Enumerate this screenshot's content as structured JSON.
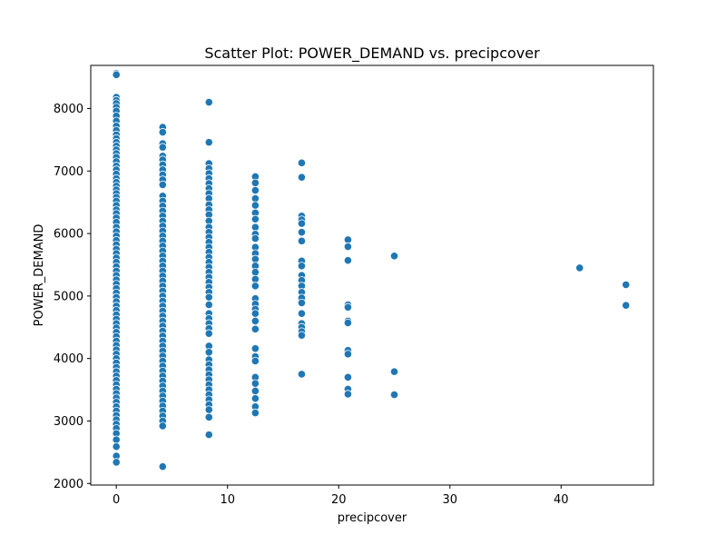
{
  "chart_data": {
    "type": "scatter",
    "title": "Scatter Plot: POWER_DEMAND vs. precipcover",
    "xlabel": "precipcover",
    "ylabel": "POWER_DEMAND",
    "xlim": [
      -2.3,
      48.3
    ],
    "ylim": [
      1975,
      8690
    ],
    "x_ticks": [
      0,
      10,
      20,
      30,
      40
    ],
    "y_ticks": [
      2000,
      3000,
      4000,
      5000,
      6000,
      7000,
      8000
    ],
    "grid": false,
    "legend": "none",
    "marker_color": "#1f77b4",
    "series": [
      {
        "points": [
          [
            0,
            8560
          ],
          [
            0,
            8540
          ],
          [
            0,
            8180
          ],
          [
            0,
            8130
          ],
          [
            0,
            8080
          ],
          [
            0,
            8020
          ],
          [
            0,
            7960
          ],
          [
            0,
            7880
          ],
          [
            0,
            7800
          ],
          [
            0,
            7720
          ],
          [
            0,
            7650
          ],
          [
            0,
            7580
          ],
          [
            0,
            7520
          ],
          [
            0,
            7460
          ],
          [
            0,
            7400
          ],
          [
            0,
            7340
          ],
          [
            0,
            7280
          ],
          [
            0,
            7220
          ],
          [
            0,
            7150
          ],
          [
            0,
            7080
          ],
          [
            0,
            7020
          ],
          [
            0,
            6950
          ],
          [
            0,
            6880
          ],
          [
            0,
            6820
          ],
          [
            0,
            6760
          ],
          [
            0,
            6700
          ],
          [
            0,
            6640
          ],
          [
            0,
            6580
          ],
          [
            0,
            6520
          ],
          [
            0,
            6450
          ],
          [
            0,
            6380
          ],
          [
            0,
            6320
          ],
          [
            0,
            6250
          ],
          [
            0,
            6180
          ],
          [
            0,
            6100
          ],
          [
            0,
            6030
          ],
          [
            0,
            5960
          ],
          [
            0,
            5890
          ],
          [
            0,
            5820
          ],
          [
            0,
            5750
          ],
          [
            0,
            5680
          ],
          [
            0,
            5610
          ],
          [
            0,
            5540
          ],
          [
            0,
            5470
          ],
          [
            0,
            5400
          ],
          [
            0,
            5330
          ],
          [
            0,
            5260
          ],
          [
            0,
            5190
          ],
          [
            0,
            5120
          ],
          [
            0,
            5050
          ],
          [
            0,
            4980
          ],
          [
            0,
            4910
          ],
          [
            0,
            4840
          ],
          [
            0,
            4770
          ],
          [
            0,
            4700
          ],
          [
            0,
            4630
          ],
          [
            0,
            4560
          ],
          [
            0,
            4490
          ],
          [
            0,
            4420
          ],
          [
            0,
            4350
          ],
          [
            0,
            4280
          ],
          [
            0,
            4210
          ],
          [
            0,
            4140
          ],
          [
            0,
            4070
          ],
          [
            0,
            4000
          ],
          [
            0,
            3930
          ],
          [
            0,
            3860
          ],
          [
            0,
            3790
          ],
          [
            0,
            3720
          ],
          [
            0,
            3650
          ],
          [
            0,
            3580
          ],
          [
            0,
            3510
          ],
          [
            0,
            3440
          ],
          [
            0,
            3370
          ],
          [
            0,
            3300
          ],
          [
            0,
            3230
          ],
          [
            0,
            3160
          ],
          [
            0,
            3090
          ],
          [
            0,
            3020
          ],
          [
            0,
            2950
          ],
          [
            0,
            2880
          ],
          [
            0,
            2800
          ],
          [
            0,
            2700
          ],
          [
            0,
            2590
          ],
          [
            0,
            2440
          ],
          [
            0,
            2340
          ],
          [
            4.17,
            7700
          ],
          [
            4.17,
            7620
          ],
          [
            4.17,
            7440
          ],
          [
            4.17,
            7380
          ],
          [
            4.17,
            7240
          ],
          [
            4.17,
            7180
          ],
          [
            4.17,
            7100
          ],
          [
            4.17,
            7020
          ],
          [
            4.17,
            6940
          ],
          [
            4.17,
            6860
          ],
          [
            4.17,
            6780
          ],
          [
            4.17,
            6600
          ],
          [
            4.17,
            6520
          ],
          [
            4.17,
            6440
          ],
          [
            4.17,
            6360
          ],
          [
            4.17,
            6280
          ],
          [
            4.17,
            6200
          ],
          [
            4.17,
            6120
          ],
          [
            4.17,
            6040
          ],
          [
            4.17,
            5960
          ],
          [
            4.17,
            5880
          ],
          [
            4.17,
            5800
          ],
          [
            4.17,
            5720
          ],
          [
            4.17,
            5640
          ],
          [
            4.17,
            5560
          ],
          [
            4.17,
            5480
          ],
          [
            4.17,
            5400
          ],
          [
            4.17,
            5320
          ],
          [
            4.17,
            5240
          ],
          [
            4.17,
            5160
          ],
          [
            4.17,
            5080
          ],
          [
            4.17,
            5000
          ],
          [
            4.17,
            4920
          ],
          [
            4.17,
            4840
          ],
          [
            4.17,
            4760
          ],
          [
            4.17,
            4680
          ],
          [
            4.17,
            4600
          ],
          [
            4.17,
            4520
          ],
          [
            4.17,
            4440
          ],
          [
            4.17,
            4360
          ],
          [
            4.17,
            4280
          ],
          [
            4.17,
            4200
          ],
          [
            4.17,
            4120
          ],
          [
            4.17,
            4040
          ],
          [
            4.17,
            3960
          ],
          [
            4.17,
            3880
          ],
          [
            4.17,
            3800
          ],
          [
            4.17,
            3720
          ],
          [
            4.17,
            3640
          ],
          [
            4.17,
            3560
          ],
          [
            4.17,
            3480
          ],
          [
            4.17,
            3400
          ],
          [
            4.17,
            3320
          ],
          [
            4.17,
            3240
          ],
          [
            4.17,
            3160
          ],
          [
            4.17,
            3080
          ],
          [
            4.17,
            3000
          ],
          [
            4.17,
            2920
          ],
          [
            4.17,
            2270
          ],
          [
            8.33,
            8100
          ],
          [
            8.33,
            7460
          ],
          [
            8.33,
            7120
          ],
          [
            8.33,
            7040
          ],
          [
            8.33,
            6960
          ],
          [
            8.33,
            6880
          ],
          [
            8.33,
            6800
          ],
          [
            8.33,
            6720
          ],
          [
            8.33,
            6640
          ],
          [
            8.33,
            6560
          ],
          [
            8.33,
            6460
          ],
          [
            8.33,
            6380
          ],
          [
            8.33,
            6300
          ],
          [
            8.33,
            6200
          ],
          [
            8.33,
            6100
          ],
          [
            8.33,
            6020
          ],
          [
            8.33,
            5940
          ],
          [
            8.33,
            5860
          ],
          [
            8.33,
            5780
          ],
          [
            8.33,
            5700
          ],
          [
            8.33,
            5620
          ],
          [
            8.33,
            5540
          ],
          [
            8.33,
            5460
          ],
          [
            8.33,
            5380
          ],
          [
            8.33,
            5300
          ],
          [
            8.33,
            5220
          ],
          [
            8.33,
            5140
          ],
          [
            8.33,
            5060
          ],
          [
            8.33,
            4980
          ],
          [
            8.33,
            4860
          ],
          [
            8.33,
            4720
          ],
          [
            8.33,
            4640
          ],
          [
            8.33,
            4560
          ],
          [
            8.33,
            4480
          ],
          [
            8.33,
            4400
          ],
          [
            8.33,
            4200
          ],
          [
            8.33,
            4100
          ],
          [
            8.33,
            3980
          ],
          [
            8.33,
            3900
          ],
          [
            8.33,
            3820
          ],
          [
            8.33,
            3740
          ],
          [
            8.33,
            3660
          ],
          [
            8.33,
            3580
          ],
          [
            8.33,
            3500
          ],
          [
            8.33,
            3420
          ],
          [
            8.33,
            3340
          ],
          [
            8.33,
            3260
          ],
          [
            8.33,
            3180
          ],
          [
            8.33,
            3060
          ],
          [
            8.33,
            2780
          ],
          [
            12.5,
            6910
          ],
          [
            12.5,
            6810
          ],
          [
            12.5,
            6690
          ],
          [
            12.5,
            6560
          ],
          [
            12.5,
            6450
          ],
          [
            12.5,
            6330
          ],
          [
            12.5,
            6230
          ],
          [
            12.5,
            6100
          ],
          [
            12.5,
            5990
          ],
          [
            12.5,
            5920
          ],
          [
            12.5,
            5780
          ],
          [
            12.5,
            5680
          ],
          [
            12.5,
            5590
          ],
          [
            12.5,
            5480
          ],
          [
            12.5,
            5380
          ],
          [
            12.5,
            5270
          ],
          [
            12.5,
            5160
          ],
          [
            12.5,
            4960
          ],
          [
            12.5,
            4870
          ],
          [
            12.5,
            4790
          ],
          [
            12.5,
            4720
          ],
          [
            12.5,
            4600
          ],
          [
            12.5,
            4470
          ],
          [
            12.5,
            4160
          ],
          [
            12.5,
            4030
          ],
          [
            12.5,
            3960
          ],
          [
            12.5,
            3700
          ],
          [
            12.5,
            3600
          ],
          [
            12.5,
            3480
          ],
          [
            12.5,
            3360
          ],
          [
            12.5,
            3230
          ],
          [
            12.5,
            3130
          ],
          [
            16.67,
            7130
          ],
          [
            16.67,
            6900
          ],
          [
            16.67,
            6280
          ],
          [
            16.67,
            6220
          ],
          [
            16.67,
            6160
          ],
          [
            16.67,
            6020
          ],
          [
            16.67,
            5880
          ],
          [
            16.67,
            5560
          ],
          [
            16.67,
            5480
          ],
          [
            16.67,
            5330
          ],
          [
            16.67,
            5250
          ],
          [
            16.67,
            5160
          ],
          [
            16.67,
            5060
          ],
          [
            16.67,
            4970
          ],
          [
            16.67,
            4890
          ],
          [
            16.67,
            4720
          ],
          [
            16.67,
            4560
          ],
          [
            16.67,
            4500
          ],
          [
            16.67,
            4430
          ],
          [
            16.67,
            4370
          ],
          [
            16.67,
            3750
          ],
          [
            20.83,
            5900
          ],
          [
            20.83,
            5790
          ],
          [
            20.83,
            5570
          ],
          [
            20.83,
            4860
          ],
          [
            20.83,
            4820
          ],
          [
            20.83,
            4600
          ],
          [
            20.83,
            4570
          ],
          [
            20.83,
            4130
          ],
          [
            20.83,
            4070
          ],
          [
            20.83,
            3700
          ],
          [
            20.83,
            3510
          ],
          [
            20.83,
            3430
          ],
          [
            25,
            5640
          ],
          [
            25,
            3790
          ],
          [
            25,
            3420
          ],
          [
            41.67,
            5450
          ],
          [
            45.83,
            5180
          ],
          [
            45.83,
            4850
          ]
        ]
      }
    ]
  }
}
